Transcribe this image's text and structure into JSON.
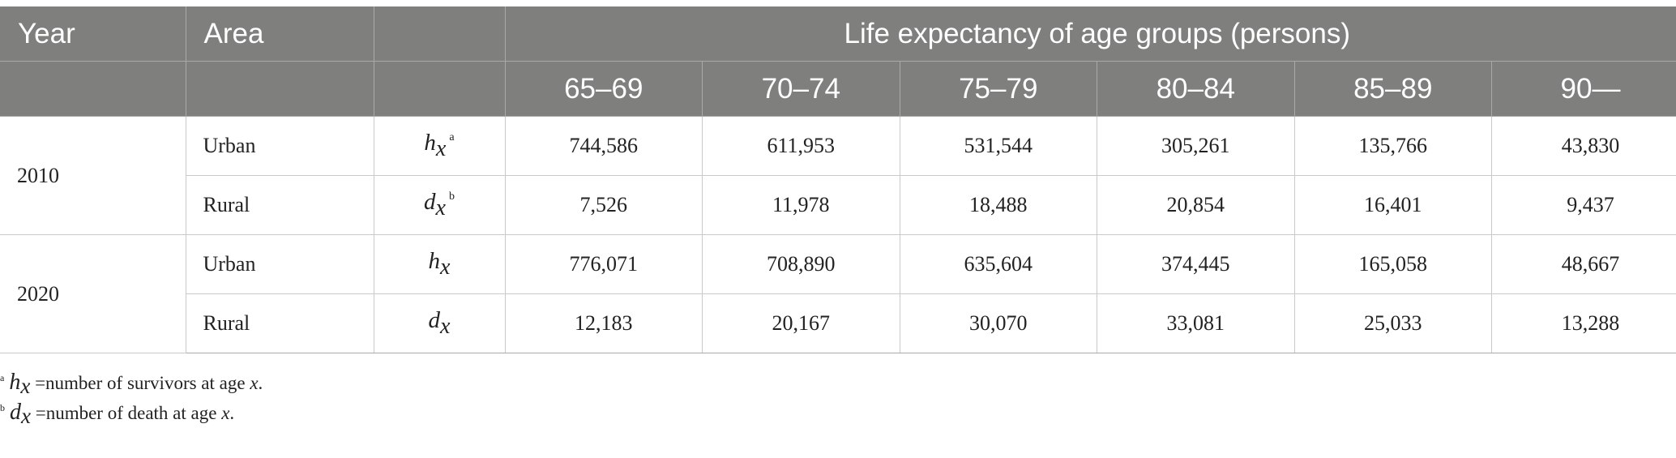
{
  "header": {
    "year": "Year",
    "area": "Area",
    "group_title": "Life expectancy of age groups (persons)",
    "age_groups": [
      "65–69",
      "70–74",
      "75–79",
      "80–84",
      "85–89",
      "90—"
    ]
  },
  "rows": [
    {
      "year": "2010",
      "area": "Urban",
      "sym": "h",
      "sub": "x",
      "mark": "a",
      "values": [
        "744,586",
        "611,953",
        "531,544",
        "305,261",
        "135,766",
        "43,830"
      ]
    },
    {
      "area": "Rural",
      "sym": "d",
      "sub": "x",
      "mark": "b",
      "values": [
        "7,526",
        "11,978",
        "18,488",
        "20,854",
        "16,401",
        "9,437"
      ]
    },
    {
      "year": "2020",
      "area": "Urban",
      "sym": "h",
      "sub": "x",
      "mark": "",
      "values": [
        "776,071",
        "708,890",
        "635,604",
        "374,445",
        "165,058",
        "48,667"
      ]
    },
    {
      "area": "Rural",
      "sym": "d",
      "sub": "x",
      "mark": "",
      "values": [
        "12,183",
        "20,167",
        "30,070",
        "33,081",
        "25,033",
        "13,288"
      ]
    }
  ],
  "footnotes": [
    {
      "mark": "a",
      "sym": "h",
      "sub": "x",
      "text": " =number of survivors at age ",
      "var": "x",
      "end": "."
    },
    {
      "mark": "b",
      "sym": "d",
      "sub": "x",
      "text": " =number of death at age ",
      "var": "x",
      "end": "."
    }
  ],
  "colors": {
    "header_bg": "#7f807e",
    "header_text": "#ffffff",
    "grid": "#c9c9c9"
  }
}
